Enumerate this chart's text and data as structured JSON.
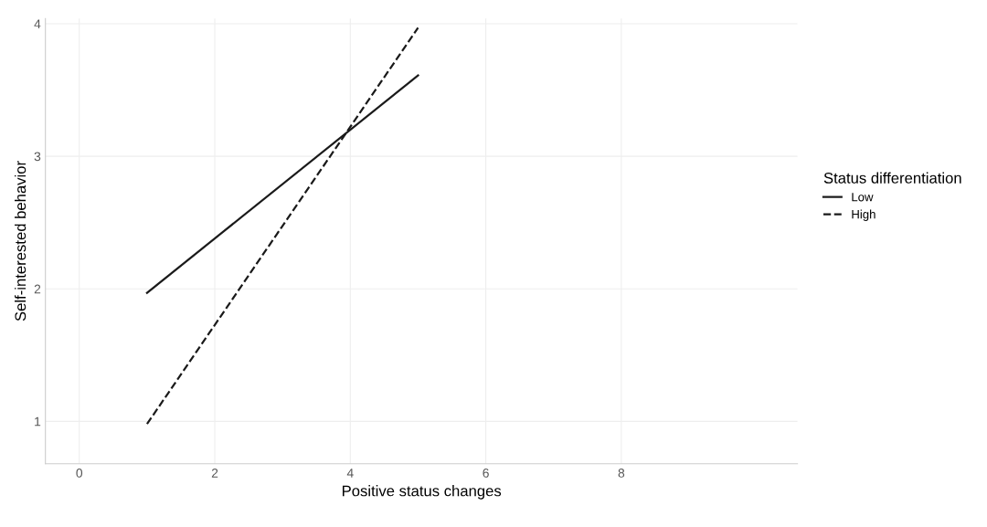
{
  "chart_data": {
    "type": "line",
    "xlabel": "Positive status changes",
    "ylabel": "Self-interested behavior",
    "legend_title": "Status differentiation",
    "legend": "right",
    "grid": true,
    "xlim": [
      -0.5,
      10.6
    ],
    "xticks": [
      0,
      2,
      4,
      6,
      8
    ],
    "ylim": [
      0.68,
      4.04
    ],
    "yticks": [
      1,
      2,
      3,
      4
    ],
    "x": [
      1,
      5
    ],
    "series": [
      {
        "name": "Low",
        "color": "#1a1a1a",
        "line_style": "solid",
        "values": [
          1.97,
          3.61
        ]
      },
      {
        "name": "High",
        "color": "#1a1a1a",
        "line_style": "dashed",
        "values": [
          0.98,
          3.97
        ]
      }
    ]
  }
}
